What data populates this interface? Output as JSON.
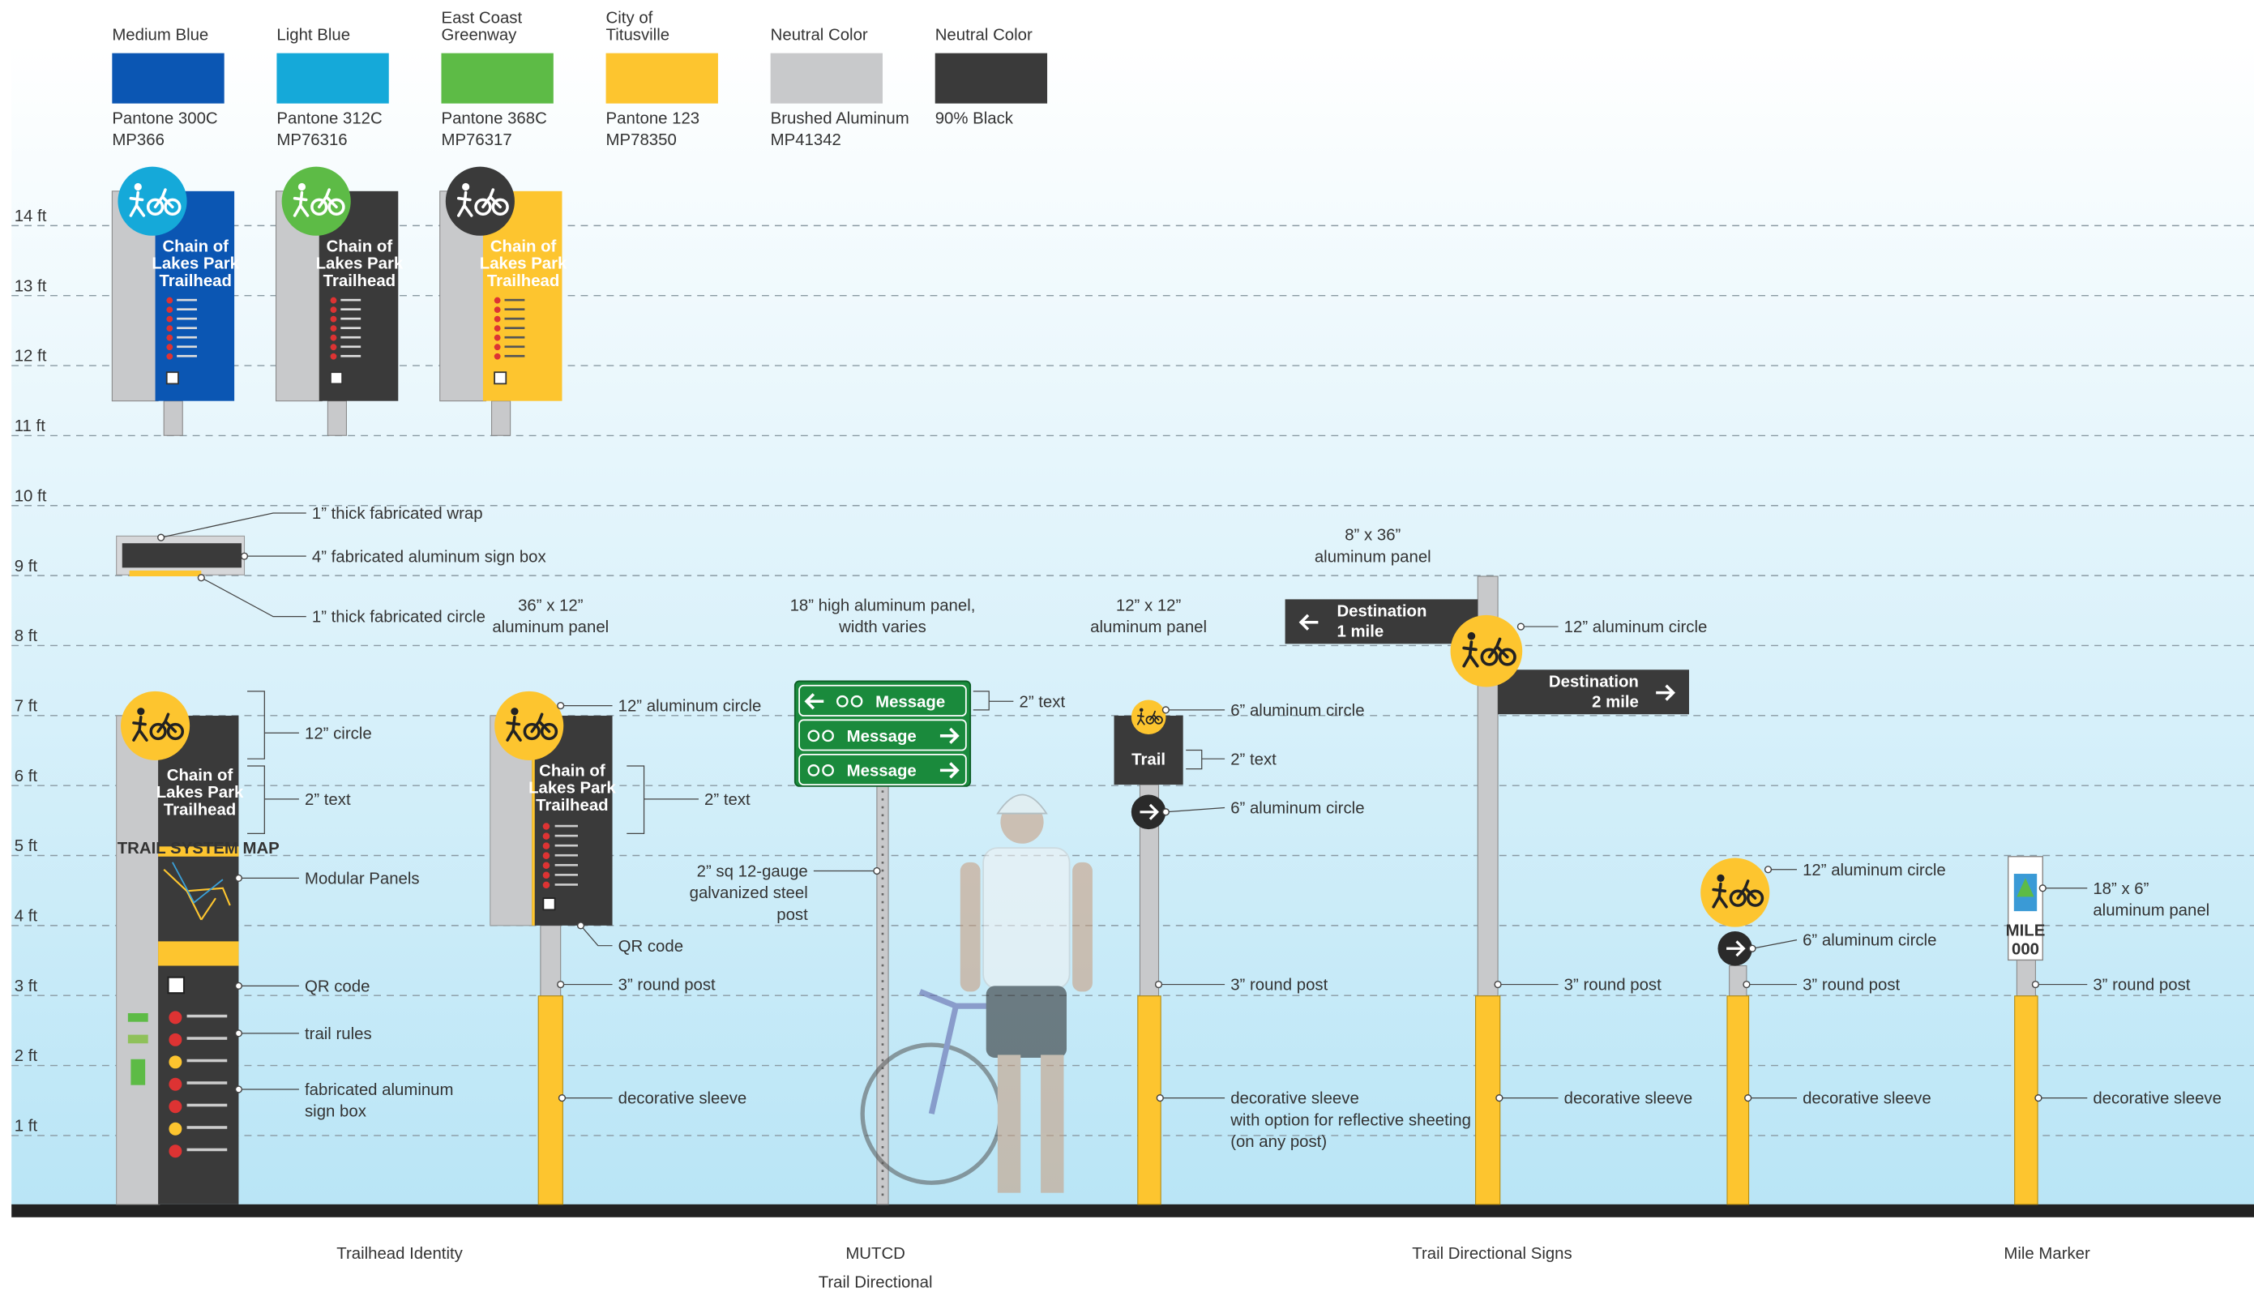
{
  "palette": [
    {
      "name_lines": [
        "Medium Blue"
      ],
      "color": "#0b56b3",
      "spec": [
        "Pantone 300C",
        "MP366"
      ]
    },
    {
      "name_lines": [
        "Light Blue"
      ],
      "color": "#15a9d9",
      "spec": [
        "Pantone 312C",
        "MP76316"
      ]
    },
    {
      "name_lines": [
        "East Coast",
        "Greenway"
      ],
      "color": "#5dbb46",
      "spec": [
        "Pantone 368C",
        "MP76317"
      ]
    },
    {
      "name_lines": [
        "City of",
        "Titusville"
      ],
      "color": "#fdc52f",
      "spec": [
        "Pantone 123",
        "MP78350"
      ]
    },
    {
      "name_lines": [
        "Neutral Color"
      ],
      "color": "#c8c9cb",
      "spec": [
        "Brushed Aluminum",
        "MP41342"
      ]
    },
    {
      "name_lines": [
        "Neutral Color"
      ],
      "color": "#3a3a3a",
      "spec": [
        "90% Black"
      ]
    }
  ],
  "height_scale": [
    "14 ft",
    "13 ft",
    "12 ft",
    "11 ft",
    "10 ft",
    "9 ft",
    "8 ft",
    "7 ft",
    "6 ft",
    "5 ft",
    "4 ft",
    "3 ft",
    "2 ft",
    "1 ft"
  ],
  "signs": {
    "trailhead_name": [
      "Chain of",
      "Lakes Park",
      "Trailhead"
    ],
    "map_title": "TRAIL SYSTEM MAP",
    "mutcd_message": [
      "Message",
      "Message",
      "Message"
    ],
    "trail": "Trail",
    "destinations": [
      [
        "Destination",
        "1 mile"
      ],
      [
        "Destination",
        "2 mile"
      ]
    ],
    "mile_marker": {
      "label": "MILE",
      "number": "000"
    }
  },
  "annotations": [
    {
      "lines": [
        "1” thick fabricated wrap"
      ]
    },
    {
      "lines": [
        "4” fabricated aluminum sign box"
      ]
    },
    {
      "lines": [
        "1” thick fabricated circle"
      ]
    },
    {
      "lines": [
        "36” x 12”",
        "aluminum panel"
      ]
    },
    {
      "lines": [
        "18” high aluminum panel,",
        "width varies"
      ]
    },
    {
      "lines": [
        "12” x 12”",
        "aluminum panel"
      ]
    },
    {
      "lines": [
        "8” x 36”",
        "aluminum panel"
      ]
    },
    {
      "lines": [
        "12” circle"
      ]
    },
    {
      "lines": [
        "2” text"
      ]
    },
    {
      "lines": [
        "Modular Panels"
      ]
    },
    {
      "lines": [
        "QR code"
      ]
    },
    {
      "lines": [
        "trail rules"
      ]
    },
    {
      "lines": [
        "fabricated aluminum",
        "sign box"
      ]
    },
    {
      "lines": [
        "12” aluminum circle"
      ]
    },
    {
      "lines": [
        "2” text"
      ]
    },
    {
      "lines": [
        "QR code"
      ]
    },
    {
      "lines": [
        "3” round post"
      ]
    },
    {
      "lines": [
        "decorative sleeve"
      ]
    },
    {
      "lines": [
        "2” text"
      ]
    },
    {
      "lines": [
        "2” sq 12-gauge",
        "galvanized steel",
        "post"
      ]
    },
    {
      "lines": [
        "6” aluminum circle"
      ]
    },
    {
      "lines": [
        "2” text"
      ]
    },
    {
      "lines": [
        "6” aluminum circle"
      ]
    },
    {
      "lines": [
        "3” round post"
      ]
    },
    {
      "lines": [
        "decorative sleeve",
        "with option for reflective sheeting",
        "(on any post)"
      ]
    },
    {
      "lines": [
        "12” aluminum circle"
      ]
    },
    {
      "lines": [
        "3” round post"
      ]
    },
    {
      "lines": [
        "decorative sleeve"
      ]
    },
    {
      "lines": [
        "12” aluminum circle"
      ]
    },
    {
      "lines": [
        "6” aluminum circle"
      ]
    },
    {
      "lines": [
        "3” round post"
      ]
    },
    {
      "lines": [
        "decorative sleeve"
      ]
    },
    {
      "lines": [
        "18” x 6”",
        "aluminum panel"
      ]
    },
    {
      "lines": [
        "3” round post"
      ]
    },
    {
      "lines": [
        "decorative sleeve"
      ]
    }
  ],
  "sections": [
    [
      "Trailhead Identity"
    ],
    [
      "MUTCD",
      "Trail Directional"
    ],
    [
      "Trail Directional Signs"
    ],
    [
      "Mile Marker"
    ]
  ]
}
